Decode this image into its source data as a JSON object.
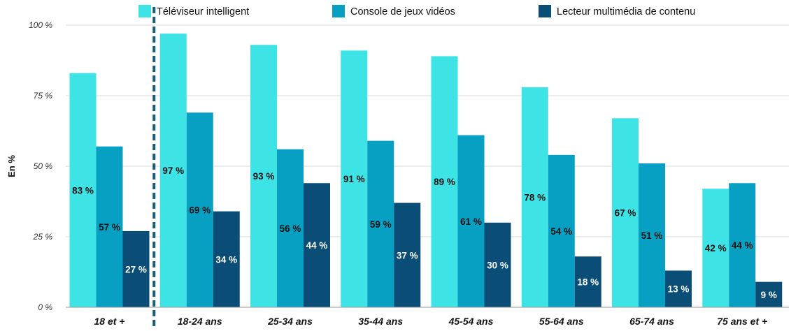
{
  "chart_data": {
    "type": "bar",
    "categories": [
      "18 et +",
      "18-24 ans",
      "25-34 ans",
      "35-44 ans",
      "45-54 ans",
      "55-64 ans",
      "65-74 ans",
      "75 ans et +"
    ],
    "series": [
      {
        "name": "Téléviseur intelligent",
        "color": "#3ee3e6",
        "values": [
          83,
          97,
          93,
          91,
          89,
          78,
          67,
          42
        ],
        "labels": [
          "83 %",
          "97 %",
          "93 %",
          "91 %",
          "89 %",
          "78 %",
          "67 %",
          "42 %"
        ]
      },
      {
        "name": "Console de jeux vidéos",
        "color": "#07a0c3",
        "values": [
          57,
          69,
          56,
          59,
          61,
          54,
          51,
          44
        ],
        "labels": [
          "57 %",
          "69 %",
          "56 %",
          "59 %",
          "61 %",
          "54 %",
          "51 %",
          "44 %"
        ]
      },
      {
        "name": "Lecteur multimédia de contenu",
        "color": "#0a4e78",
        "values": [
          27,
          34,
          44,
          37,
          30,
          18,
          13,
          9
        ],
        "labels": [
          "27 %",
          "34 %",
          "44 %",
          "37 %",
          "30 %",
          "18 %",
          "13 %",
          "9 %"
        ]
      }
    ],
    "ylabel": "En %",
    "ylim": [
      0,
      100
    ],
    "yticks": [
      0,
      25,
      50,
      75,
      100
    ],
    "ytick_labels": [
      "0 %",
      "25 %",
      "50 %",
      "75 %",
      "100 %"
    ],
    "grid": true,
    "legend_position": "top",
    "separator_after_category": 0
  }
}
